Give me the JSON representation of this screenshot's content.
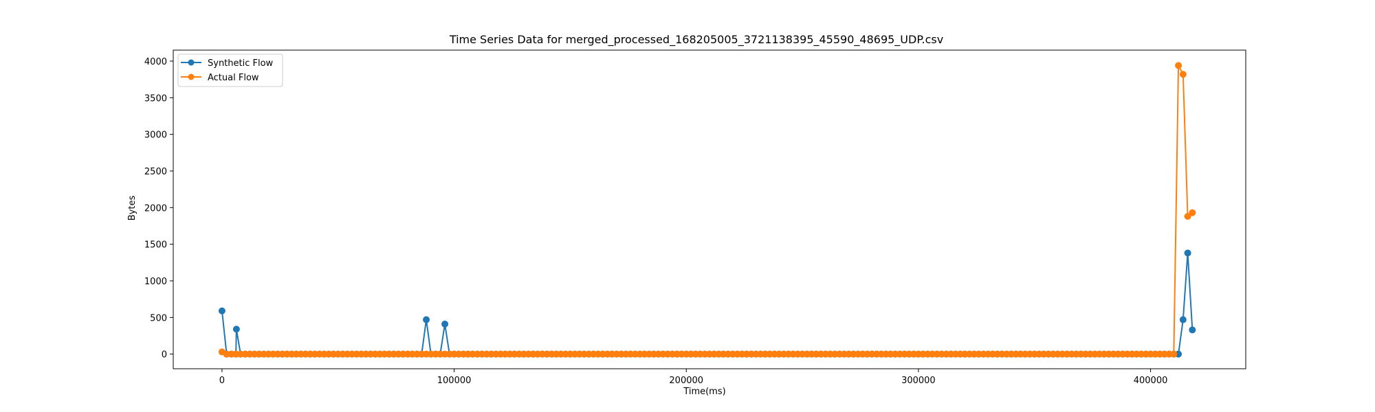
{
  "chart_data": {
    "type": "line",
    "title": "Time Series Data for merged_processed_168205005_3721138395_45590_48695_UDP.csv",
    "xlabel": "Time(ms)",
    "ylabel": "Bytes",
    "xlim": [
      -21000,
      441000
    ],
    "ylim": [
      -200,
      4150
    ],
    "x_ticks": [
      0,
      100000,
      200000,
      300000,
      400000
    ],
    "x_tick_labels": [
      "0",
      "100000",
      "200000",
      "300000",
      "400000"
    ],
    "y_ticks": [
      0,
      500,
      1000,
      1500,
      2000,
      2500,
      3000,
      3500,
      4000
    ],
    "y_tick_labels": [
      "0",
      "500",
      "1000",
      "1500",
      "2000",
      "2500",
      "3000",
      "3500",
      "4000"
    ],
    "grid": false,
    "legend_position": "top-left",
    "series": [
      {
        "name": "Synthetic Flow",
        "color": "#1f77b4",
        "marker": "circle",
        "points": [
          [
            0,
            590
          ],
          [
            2000,
            0
          ],
          [
            4000,
            0
          ],
          [
            6200,
            340
          ],
          [
            8000,
            0
          ],
          [
            86000,
            0
          ],
          [
            88000,
            470
          ],
          [
            90000,
            0
          ],
          [
            94000,
            0
          ],
          [
            96000,
            410
          ],
          [
            98000,
            0
          ],
          [
            412000,
            0
          ],
          [
            414000,
            470
          ],
          [
            416000,
            1380
          ],
          [
            418000,
            330
          ]
        ],
        "baseline": {
          "start": 0,
          "end": 412000,
          "step": 2000,
          "value": 0
        }
      },
      {
        "name": "Actual Flow",
        "color": "#ff7f0e",
        "marker": "circle",
        "points": [
          [
            0,
            30
          ],
          [
            2000,
            0
          ],
          [
            410000,
            0
          ],
          [
            412000,
            3940
          ],
          [
            414000,
            3820
          ],
          [
            416000,
            1880
          ],
          [
            418000,
            1930
          ]
        ],
        "baseline": {
          "start": 2000,
          "end": 410000,
          "step": 2000,
          "value": 0
        }
      }
    ]
  }
}
